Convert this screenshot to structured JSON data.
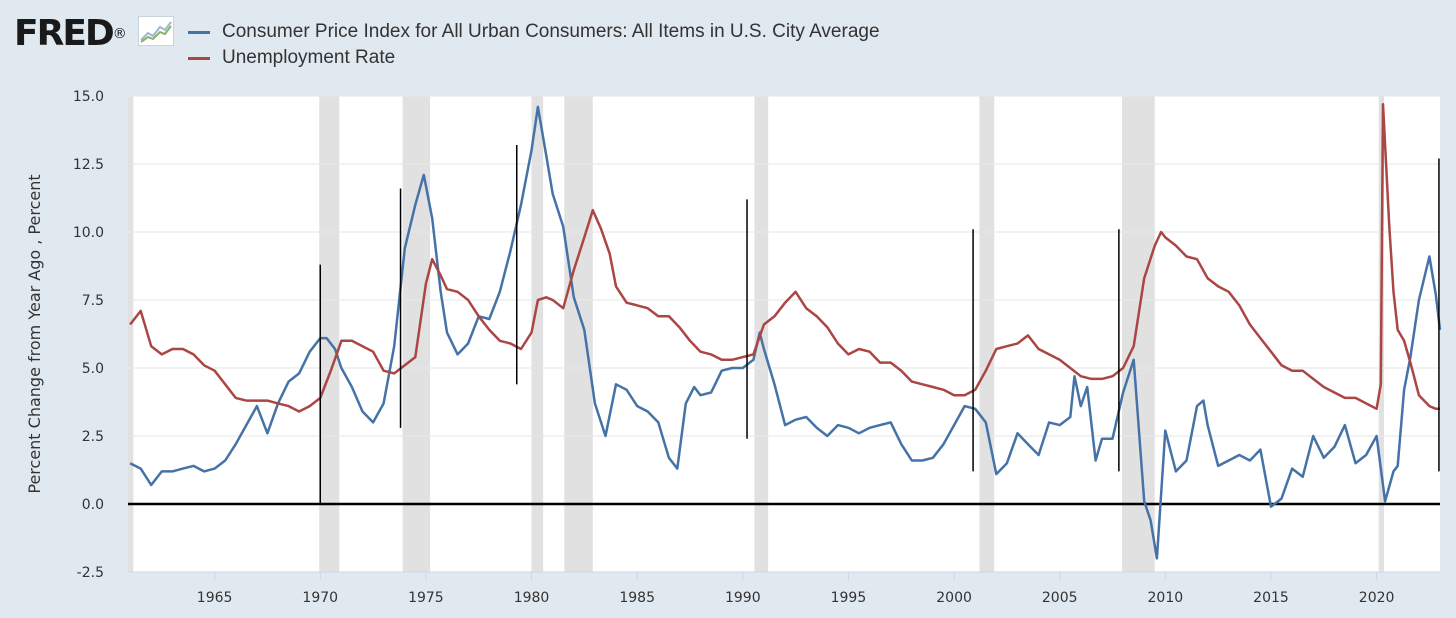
{
  "header": {
    "logo_text": "FRED",
    "logo_trademark": "®"
  },
  "colors": {
    "cpi": "#4572a7",
    "unrate": "#aa4643",
    "recession": "#e1e1e1",
    "background": "#e1e9f0",
    "plot": "#ffffff"
  },
  "icons": [
    "fred-logo-chart-icon"
  ],
  "chart_data": {
    "type": "line",
    "title": "",
    "xlabel": "",
    "ylabel": "Percent Change from Year Ago , Percent",
    "xlim": [
      1960.9,
      2023.0
    ],
    "ylim": [
      -2.5,
      15.0
    ],
    "y_ticks": [
      "-2.5",
      "0.0",
      "2.5",
      "5.0",
      "7.5",
      "10.0",
      "12.5",
      "15.0"
    ],
    "x_ticks": [
      "1965",
      "1970",
      "1975",
      "1980",
      "1985",
      "1990",
      "1995",
      "2000",
      "2005",
      "2010",
      "2015",
      "2020"
    ],
    "grid": true,
    "legend_position": "top-left",
    "series": [
      {
        "name": "Consumer Price Index for All Urban Consumers: All Items in U.S. City Average",
        "color": "#4572a7",
        "points": [
          [
            1961.0,
            1.5
          ],
          [
            1961.5,
            1.3
          ],
          [
            1962.0,
            0.7
          ],
          [
            1962.5,
            1.2
          ],
          [
            1963.0,
            1.2
          ],
          [
            1963.5,
            1.3
          ],
          [
            1964.0,
            1.4
          ],
          [
            1964.5,
            1.2
          ],
          [
            1965.0,
            1.3
          ],
          [
            1965.5,
            1.6
          ],
          [
            1966.0,
            2.2
          ],
          [
            1966.5,
            2.9
          ],
          [
            1967.0,
            3.6
          ],
          [
            1967.5,
            2.6
          ],
          [
            1968.0,
            3.7
          ],
          [
            1968.5,
            4.5
          ],
          [
            1969.0,
            4.8
          ],
          [
            1969.5,
            5.6
          ],
          [
            1970.0,
            6.1
          ],
          [
            1970.3,
            6.1
          ],
          [
            1970.7,
            5.7
          ],
          [
            1971.0,
            5.0
          ],
          [
            1971.5,
            4.3
          ],
          [
            1972.0,
            3.4
          ],
          [
            1972.5,
            3.0
          ],
          [
            1973.0,
            3.7
          ],
          [
            1973.5,
            5.8
          ],
          [
            1974.0,
            9.4
          ],
          [
            1974.5,
            11.0
          ],
          [
            1974.9,
            12.1
          ],
          [
            1975.3,
            10.5
          ],
          [
            1975.7,
            7.8
          ],
          [
            1976.0,
            6.3
          ],
          [
            1976.5,
            5.5
          ],
          [
            1977.0,
            5.9
          ],
          [
            1977.5,
            6.9
          ],
          [
            1978.0,
            6.8
          ],
          [
            1978.5,
            7.8
          ],
          [
            1979.0,
            9.3
          ],
          [
            1979.5,
            11.0
          ],
          [
            1980.0,
            13.0
          ],
          [
            1980.3,
            14.6
          ],
          [
            1980.7,
            12.8
          ],
          [
            1981.0,
            11.4
          ],
          [
            1981.5,
            10.2
          ],
          [
            1982.0,
            7.6
          ],
          [
            1982.5,
            6.4
          ],
          [
            1983.0,
            3.7
          ],
          [
            1983.5,
            2.5
          ],
          [
            1984.0,
            4.4
          ],
          [
            1984.5,
            4.2
          ],
          [
            1985.0,
            3.6
          ],
          [
            1985.5,
            3.4
          ],
          [
            1986.0,
            3.0
          ],
          [
            1986.5,
            1.7
          ],
          [
            1986.9,
            1.3
          ],
          [
            1987.3,
            3.7
          ],
          [
            1987.7,
            4.3
          ],
          [
            1988.0,
            4.0
          ],
          [
            1988.5,
            4.1
          ],
          [
            1989.0,
            4.9
          ],
          [
            1989.5,
            5.0
          ],
          [
            1990.0,
            5.0
          ],
          [
            1990.5,
            5.3
          ],
          [
            1990.8,
            6.3
          ],
          [
            1991.0,
            5.7
          ],
          [
            1991.5,
            4.4
          ],
          [
            1992.0,
            2.9
          ],
          [
            1992.5,
            3.1
          ],
          [
            1993.0,
            3.2
          ],
          [
            1993.5,
            2.8
          ],
          [
            1994.0,
            2.5
          ],
          [
            1994.5,
            2.9
          ],
          [
            1995.0,
            2.8
          ],
          [
            1995.5,
            2.6
          ],
          [
            1996.0,
            2.8
          ],
          [
            1996.5,
            2.9
          ],
          [
            1997.0,
            3.0
          ],
          [
            1997.5,
            2.2
          ],
          [
            1998.0,
            1.6
          ],
          [
            1998.5,
            1.6
          ],
          [
            1999.0,
            1.7
          ],
          [
            1999.5,
            2.2
          ],
          [
            2000.0,
            2.9
          ],
          [
            2000.5,
            3.6
          ],
          [
            2001.0,
            3.5
          ],
          [
            2001.5,
            3.0
          ],
          [
            2002.0,
            1.1
          ],
          [
            2002.5,
            1.5
          ],
          [
            2003.0,
            2.6
          ],
          [
            2003.5,
            2.2
          ],
          [
            2004.0,
            1.8
          ],
          [
            2004.5,
            3.0
          ],
          [
            2005.0,
            2.9
          ],
          [
            2005.5,
            3.2
          ],
          [
            2005.7,
            4.7
          ],
          [
            2006.0,
            3.6
          ],
          [
            2006.3,
            4.3
          ],
          [
            2006.7,
            1.6
          ],
          [
            2007.0,
            2.4
          ],
          [
            2007.5,
            2.4
          ],
          [
            2008.0,
            4.1
          ],
          [
            2008.5,
            5.3
          ],
          [
            2009.0,
            0.1
          ],
          [
            2009.3,
            -0.6
          ],
          [
            2009.6,
            -2.0
          ],
          [
            2010.0,
            2.7
          ],
          [
            2010.5,
            1.2
          ],
          [
            2011.0,
            1.6
          ],
          [
            2011.5,
            3.6
          ],
          [
            2011.8,
            3.8
          ],
          [
            2012.0,
            2.9
          ],
          [
            2012.5,
            1.4
          ],
          [
            2013.0,
            1.6
          ],
          [
            2013.5,
            1.8
          ],
          [
            2014.0,
            1.6
          ],
          [
            2014.5,
            2.0
          ],
          [
            2015.0,
            -0.1
          ],
          [
            2015.5,
            0.2
          ],
          [
            2016.0,
            1.3
          ],
          [
            2016.5,
            1.0
          ],
          [
            2017.0,
            2.5
          ],
          [
            2017.5,
            1.7
          ],
          [
            2018.0,
            2.1
          ],
          [
            2018.5,
            2.9
          ],
          [
            2019.0,
            1.5
          ],
          [
            2019.5,
            1.8
          ],
          [
            2020.0,
            2.5
          ],
          [
            2020.4,
            0.1
          ],
          [
            2020.8,
            1.2
          ],
          [
            2021.0,
            1.4
          ],
          [
            2021.3,
            4.2
          ],
          [
            2021.6,
            5.4
          ],
          [
            2022.0,
            7.5
          ],
          [
            2022.5,
            9.1
          ],
          [
            2022.8,
            7.7
          ],
          [
            2023.0,
            6.4
          ]
        ]
      },
      {
        "name": "Unemployment Rate",
        "color": "#aa4643",
        "points": [
          [
            1961.0,
            6.6
          ],
          [
            1961.5,
            7.1
          ],
          [
            1962.0,
            5.8
          ],
          [
            1962.5,
            5.5
          ],
          [
            1963.0,
            5.7
          ],
          [
            1963.5,
            5.7
          ],
          [
            1964.0,
            5.5
          ],
          [
            1964.5,
            5.1
          ],
          [
            1965.0,
            4.9
          ],
          [
            1965.5,
            4.4
          ],
          [
            1966.0,
            3.9
          ],
          [
            1966.5,
            3.8
          ],
          [
            1967.0,
            3.8
          ],
          [
            1967.5,
            3.8
          ],
          [
            1968.0,
            3.7
          ],
          [
            1968.5,
            3.6
          ],
          [
            1969.0,
            3.4
          ],
          [
            1969.5,
            3.6
          ],
          [
            1970.0,
            3.9
          ],
          [
            1970.5,
            4.9
          ],
          [
            1971.0,
            6.0
          ],
          [
            1971.5,
            6.0
          ],
          [
            1972.0,
            5.8
          ],
          [
            1972.5,
            5.6
          ],
          [
            1973.0,
            4.9
          ],
          [
            1973.5,
            4.8
          ],
          [
            1974.0,
            5.1
          ],
          [
            1974.5,
            5.4
          ],
          [
            1975.0,
            8.1
          ],
          [
            1975.3,
            9.0
          ],
          [
            1975.7,
            8.4
          ],
          [
            1976.0,
            7.9
          ],
          [
            1976.5,
            7.8
          ],
          [
            1977.0,
            7.5
          ],
          [
            1977.5,
            6.9
          ],
          [
            1978.0,
            6.4
          ],
          [
            1978.5,
            6.0
          ],
          [
            1979.0,
            5.9
          ],
          [
            1979.5,
            5.7
          ],
          [
            1980.0,
            6.3
          ],
          [
            1980.3,
            7.5
          ],
          [
            1980.7,
            7.6
          ],
          [
            1981.0,
            7.5
          ],
          [
            1981.5,
            7.2
          ],
          [
            1982.0,
            8.6
          ],
          [
            1982.5,
            9.8
          ],
          [
            1982.9,
            10.8
          ],
          [
            1983.3,
            10.1
          ],
          [
            1983.7,
            9.2
          ],
          [
            1984.0,
            8.0
          ],
          [
            1984.5,
            7.4
          ],
          [
            1985.0,
            7.3
          ],
          [
            1985.5,
            7.2
          ],
          [
            1986.0,
            6.9
          ],
          [
            1986.5,
            6.9
          ],
          [
            1987.0,
            6.5
          ],
          [
            1987.5,
            6.0
          ],
          [
            1988.0,
            5.6
          ],
          [
            1988.5,
            5.5
          ],
          [
            1989.0,
            5.3
          ],
          [
            1989.5,
            5.3
          ],
          [
            1990.0,
            5.4
          ],
          [
            1990.5,
            5.5
          ],
          [
            1991.0,
            6.6
          ],
          [
            1991.5,
            6.9
          ],
          [
            1992.0,
            7.4
          ],
          [
            1992.5,
            7.8
          ],
          [
            1993.0,
            7.2
          ],
          [
            1993.5,
            6.9
          ],
          [
            1994.0,
            6.5
          ],
          [
            1994.5,
            5.9
          ],
          [
            1995.0,
            5.5
          ],
          [
            1995.5,
            5.7
          ],
          [
            1996.0,
            5.6
          ],
          [
            1996.5,
            5.2
          ],
          [
            1997.0,
            5.2
          ],
          [
            1997.5,
            4.9
          ],
          [
            1998.0,
            4.5
          ],
          [
            1998.5,
            4.4
          ],
          [
            1999.0,
            4.3
          ],
          [
            1999.5,
            4.2
          ],
          [
            2000.0,
            4.0
          ],
          [
            2000.5,
            4.0
          ],
          [
            2001.0,
            4.2
          ],
          [
            2001.5,
            4.9
          ],
          [
            2002.0,
            5.7
          ],
          [
            2002.5,
            5.8
          ],
          [
            2003.0,
            5.9
          ],
          [
            2003.5,
            6.2
          ],
          [
            2004.0,
            5.7
          ],
          [
            2004.5,
            5.5
          ],
          [
            2005.0,
            5.3
          ],
          [
            2005.5,
            5.0
          ],
          [
            2006.0,
            4.7
          ],
          [
            2006.5,
            4.6
          ],
          [
            2007.0,
            4.6
          ],
          [
            2007.5,
            4.7
          ],
          [
            2008.0,
            5.0
          ],
          [
            2008.5,
            5.8
          ],
          [
            2009.0,
            8.3
          ],
          [
            2009.5,
            9.5
          ],
          [
            2009.8,
            10.0
          ],
          [
            2010.0,
            9.8
          ],
          [
            2010.5,
            9.5
          ],
          [
            2011.0,
            9.1
          ],
          [
            2011.5,
            9.0
          ],
          [
            2012.0,
            8.3
          ],
          [
            2012.5,
            8.0
          ],
          [
            2013.0,
            7.8
          ],
          [
            2013.5,
            7.3
          ],
          [
            2014.0,
            6.6
          ],
          [
            2014.5,
            6.1
          ],
          [
            2015.0,
            5.6
          ],
          [
            2015.5,
            5.1
          ],
          [
            2016.0,
            4.9
          ],
          [
            2016.5,
            4.9
          ],
          [
            2017.0,
            4.6
          ],
          [
            2017.5,
            4.3
          ],
          [
            2018.0,
            4.1
          ],
          [
            2018.5,
            3.9
          ],
          [
            2019.0,
            3.9
          ],
          [
            2019.5,
            3.7
          ],
          [
            2020.0,
            3.5
          ],
          [
            2020.2,
            4.4
          ],
          [
            2020.3,
            14.7
          ],
          [
            2020.4,
            13.2
          ],
          [
            2020.6,
            10.2
          ],
          [
            2020.8,
            7.8
          ],
          [
            2021.0,
            6.4
          ],
          [
            2021.3,
            6.0
          ],
          [
            2021.6,
            5.2
          ],
          [
            2022.0,
            4.0
          ],
          [
            2022.5,
            3.6
          ],
          [
            2022.8,
            3.5
          ],
          [
            2023.0,
            3.5
          ]
        ]
      }
    ],
    "recessions": [
      [
        1960.3,
        1961.15
      ],
      [
        1969.95,
        1970.9
      ],
      [
        1973.9,
        1975.2
      ],
      [
        1980.0,
        1980.55
      ],
      [
        1981.55,
        1982.9
      ],
      [
        1990.55,
        1991.2
      ],
      [
        2001.2,
        2001.9
      ],
      [
        2007.95,
        2009.5
      ],
      [
        2020.1,
        2020.35
      ]
    ],
    "annotations": [
      {
        "x": 1970.0,
        "y1": 0.0,
        "y2": 8.8
      },
      {
        "x": 1973.8,
        "y1": 2.8,
        "y2": 11.6
      },
      {
        "x": 1979.3,
        "y1": 4.4,
        "y2": 13.2
      },
      {
        "x": 1990.2,
        "y1": 2.4,
        "y2": 11.2
      },
      {
        "x": 2000.9,
        "y1": 1.2,
        "y2": 10.1
      },
      {
        "x": 2007.8,
        "y1": 1.2,
        "y2": 10.1
      },
      {
        "x": 2022.95,
        "y1": 1.2,
        "y2": 12.7
      }
    ]
  }
}
